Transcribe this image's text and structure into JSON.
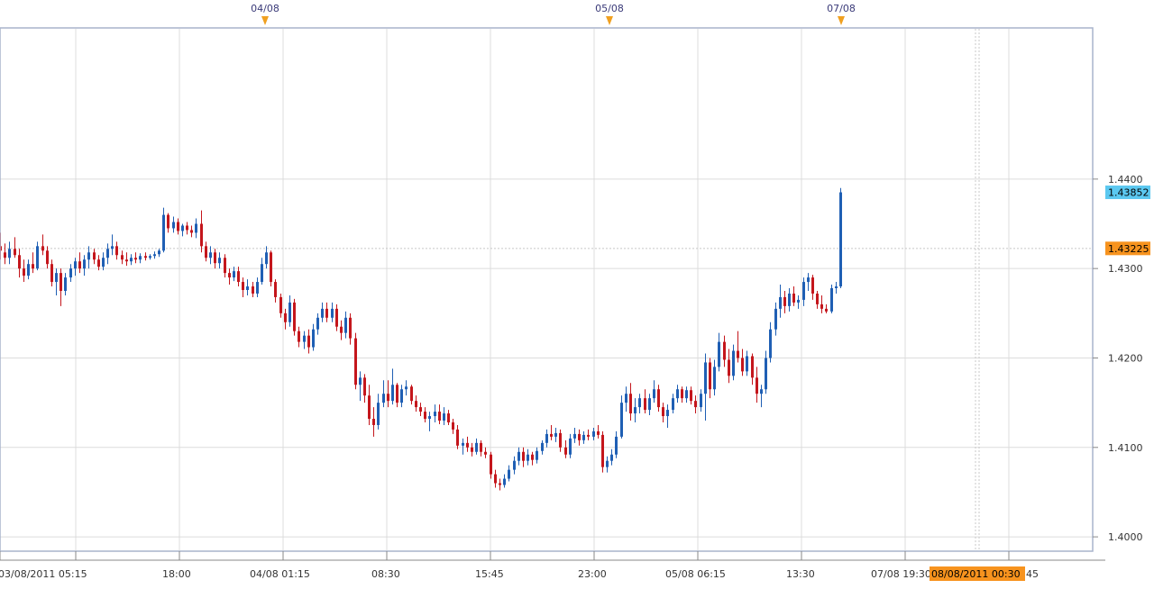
{
  "chart_data": {
    "type": "candlestick",
    "title": "",
    "xlabel": "",
    "ylabel": "",
    "ylim": [
      1.3985,
      1.4568
    ],
    "grid": true,
    "colors": {
      "up": "#1f5fb4",
      "down": "#c4161c",
      "grid": "#dcdcdc",
      "frame": "#a9b4cc",
      "axis_text": "#333333",
      "date_marker": "#f0a020",
      "date_text": "#3a3a78",
      "last_price_bg": "#5bc8f0",
      "ref_price_bg": "#f7931e"
    },
    "y_ticks": [
      "1.4000",
      "1.4100",
      "1.4200",
      "1.4300",
      "1.4400"
    ],
    "y_tick_values": [
      1.4,
      1.41,
      1.42,
      1.43,
      1.44
    ],
    "x_ticks": [
      "03/08/2011 05:15",
      "18:00",
      "04/08 01:15",
      "08:30",
      "15:45",
      "23:00",
      "05/08 06:15",
      "13:30",
      "07/08 19:30",
      "45"
    ],
    "date_markers": [
      "04/08",
      "05/08",
      "07/08"
    ],
    "last_price": {
      "label": "1.43852",
      "value": 1.43852
    },
    "ref_price": {
      "label": "1.43225",
      "value": 1.43225
    },
    "cursor_label": "08/08/2011 00:30",
    "candles": {
      "fields": [
        "open",
        "high",
        "low",
        "close"
      ],
      "values": [
        [
          1.4325,
          1.434,
          1.431,
          1.432
        ],
        [
          1.4318,
          1.4328,
          1.4305,
          1.4312
        ],
        [
          1.4312,
          1.433,
          1.4305,
          1.4322
        ],
        [
          1.4322,
          1.4335,
          1.4312,
          1.4315
        ],
        [
          1.4315,
          1.4322,
          1.429,
          1.43
        ],
        [
          1.43,
          1.431,
          1.4285,
          1.4292
        ],
        [
          1.4292,
          1.431,
          1.4288,
          1.4305
        ],
        [
          1.4305,
          1.4318,
          1.4295,
          1.43
        ],
        [
          1.43,
          1.433,
          1.4298,
          1.4325
        ],
        [
          1.4325,
          1.4338,
          1.4315,
          1.432
        ],
        [
          1.432,
          1.4325,
          1.43,
          1.4305
        ],
        [
          1.4305,
          1.431,
          1.428,
          1.4285
        ],
        [
          1.4285,
          1.43,
          1.427,
          1.4295
        ],
        [
          1.4295,
          1.43,
          1.4258,
          1.4275
        ],
        [
          1.4275,
          1.4295,
          1.427,
          1.429
        ],
        [
          1.429,
          1.4305,
          1.4285,
          1.43
        ],
        [
          1.43,
          1.4312,
          1.4292,
          1.4308
        ],
        [
          1.4308,
          1.4318,
          1.4295,
          1.43
        ],
        [
          1.43,
          1.4315,
          1.4292,
          1.431
        ],
        [
          1.431,
          1.4325,
          1.43,
          1.4318
        ],
        [
          1.4318,
          1.4322,
          1.4305,
          1.431
        ],
        [
          1.431,
          1.4315,
          1.4298,
          1.4302
        ],
        [
          1.4302,
          1.4318,
          1.4298,
          1.4312
        ],
        [
          1.4312,
          1.4328,
          1.4305,
          1.4322
        ],
        [
          1.4322,
          1.4338,
          1.4315,
          1.4325
        ],
        [
          1.4325,
          1.433,
          1.431,
          1.4315
        ],
        [
          1.4315,
          1.432,
          1.4305,
          1.431
        ],
        [
          1.431,
          1.4318,
          1.4303,
          1.4308
        ],
        [
          1.4308,
          1.4316,
          1.4304,
          1.4312
        ],
        [
          1.4312,
          1.4318,
          1.4306,
          1.431
        ],
        [
          1.431,
          1.4317,
          1.4306,
          1.4314
        ],
        [
          1.4314,
          1.4318,
          1.4309,
          1.4312
        ],
        [
          1.4312,
          1.4316,
          1.431,
          1.4314
        ],
        [
          1.4314,
          1.4319,
          1.4311,
          1.4316
        ],
        [
          1.4316,
          1.4322,
          1.4313,
          1.432
        ],
        [
          1.432,
          1.4368,
          1.4318,
          1.436
        ],
        [
          1.436,
          1.4362,
          1.434,
          1.4345
        ],
        [
          1.4345,
          1.4358,
          1.434,
          1.4352
        ],
        [
          1.4352,
          1.4356,
          1.4338,
          1.4342
        ],
        [
          1.4342,
          1.435,
          1.4336,
          1.4348
        ],
        [
          1.4348,
          1.4352,
          1.4338,
          1.4343
        ],
        [
          1.4343,
          1.4348,
          1.4335,
          1.434
        ],
        [
          1.434,
          1.4356,
          1.4334,
          1.435
        ],
        [
          1.435,
          1.4365,
          1.4318,
          1.4325
        ],
        [
          1.4325,
          1.433,
          1.4308,
          1.4312
        ],
        [
          1.4312,
          1.4325,
          1.4305,
          1.4318
        ],
        [
          1.4318,
          1.4322,
          1.43,
          1.4306
        ],
        [
          1.4306,
          1.4318,
          1.43,
          1.4312
        ],
        [
          1.4312,
          1.4316,
          1.429,
          1.4295
        ],
        [
          1.4295,
          1.43,
          1.4282,
          1.429
        ],
        [
          1.429,
          1.4302,
          1.4286,
          1.4297
        ],
        [
          1.4297,
          1.4302,
          1.428,
          1.4285
        ],
        [
          1.4285,
          1.429,
          1.4268,
          1.4276
        ],
        [
          1.4276,
          1.4288,
          1.427,
          1.428
        ],
        [
          1.428,
          1.4285,
          1.4268,
          1.4272
        ],
        [
          1.4272,
          1.429,
          1.4268,
          1.4285
        ],
        [
          1.4285,
          1.4312,
          1.4282,
          1.4305
        ],
        [
          1.4305,
          1.4325,
          1.43,
          1.4318
        ],
        [
          1.4318,
          1.432,
          1.428,
          1.4285
        ],
        [
          1.4285,
          1.4288,
          1.4262,
          1.4268
        ],
        [
          1.4268,
          1.4272,
          1.4245,
          1.425
        ],
        [
          1.425,
          1.4255,
          1.4232,
          1.424
        ],
        [
          1.424,
          1.427,
          1.4235,
          1.4262
        ],
        [
          1.4262,
          1.4266,
          1.4225,
          1.423
        ],
        [
          1.423,
          1.4235,
          1.4212,
          1.4218
        ],
        [
          1.4218,
          1.423,
          1.421,
          1.4225
        ],
        [
          1.4225,
          1.4232,
          1.4205,
          1.4212
        ],
        [
          1.4212,
          1.4238,
          1.4208,
          1.4232
        ],
        [
          1.4232,
          1.425,
          1.4226,
          1.4245
        ],
        [
          1.4245,
          1.4262,
          1.424,
          1.4255
        ],
        [
          1.4255,
          1.4262,
          1.424,
          1.4245
        ],
        [
          1.4245,
          1.4262,
          1.424,
          1.4255
        ],
        [
          1.4255,
          1.426,
          1.423,
          1.4235
        ],
        [
          1.4235,
          1.4242,
          1.422,
          1.4228
        ],
        [
          1.4228,
          1.4252,
          1.4222,
          1.4245
        ],
        [
          1.4245,
          1.425,
          1.4215,
          1.4222
        ],
        [
          1.4222,
          1.4228,
          1.4165,
          1.417
        ],
        [
          1.417,
          1.4185,
          1.4152,
          1.4178
        ],
        [
          1.4178,
          1.4182,
          1.415,
          1.4158
        ],
        [
          1.4158,
          1.417,
          1.4125,
          1.4132
        ],
        [
          1.4132,
          1.4145,
          1.4112,
          1.4125
        ],
        [
          1.4125,
          1.416,
          1.412,
          1.415
        ],
        [
          1.415,
          1.4175,
          1.4145,
          1.416
        ],
        [
          1.416,
          1.4175,
          1.4145,
          1.4152
        ],
        [
          1.4152,
          1.4188,
          1.4148,
          1.417
        ],
        [
          1.417,
          1.4172,
          1.4145,
          1.415
        ],
        [
          1.415,
          1.417,
          1.4145,
          1.4165
        ],
        [
          1.4165,
          1.4175,
          1.4158,
          1.4168
        ],
        [
          1.4168,
          1.417,
          1.4148,
          1.4152
        ],
        [
          1.4152,
          1.4158,
          1.414,
          1.4145
        ],
        [
          1.4145,
          1.415,
          1.4135,
          1.414
        ],
        [
          1.414,
          1.4145,
          1.4128,
          1.4132
        ],
        [
          1.4132,
          1.414,
          1.4118,
          1.4135
        ],
        [
          1.4135,
          1.4148,
          1.4128,
          1.414
        ],
        [
          1.414,
          1.4148,
          1.4126,
          1.413
        ],
        [
          1.413,
          1.4145,
          1.4125,
          1.4138
        ],
        [
          1.4138,
          1.4142,
          1.4125,
          1.4128
        ],
        [
          1.4128,
          1.4132,
          1.4115,
          1.412
        ],
        [
          1.412,
          1.4125,
          1.4098,
          1.4102
        ],
        [
          1.4102,
          1.411,
          1.4092,
          1.4105
        ],
        [
          1.4105,
          1.4112,
          1.4095,
          1.41
        ],
        [
          1.41,
          1.4105,
          1.409,
          1.4095
        ],
        [
          1.4095,
          1.411,
          1.4092,
          1.4105
        ],
        [
          1.4105,
          1.4108,
          1.409,
          1.4095
        ],
        [
          1.4095,
          1.41,
          1.4088,
          1.4092
        ],
        [
          1.4092,
          1.4095,
          1.4065,
          1.407
        ],
        [
          1.407,
          1.4075,
          1.4055,
          1.406
        ],
        [
          1.406,
          1.4065,
          1.4052,
          1.4058
        ],
        [
          1.4058,
          1.407,
          1.4055,
          1.4065
        ],
        [
          1.4065,
          1.408,
          1.4062,
          1.4075
        ],
        [
          1.4075,
          1.409,
          1.407,
          1.4085
        ],
        [
          1.4085,
          1.41,
          1.408,
          1.4095
        ],
        [
          1.4095,
          1.41,
          1.4078,
          1.4085
        ],
        [
          1.4085,
          1.4098,
          1.408,
          1.4092
        ],
        [
          1.4092,
          1.4095,
          1.408,
          1.4086
        ],
        [
          1.4086,
          1.41,
          1.4082,
          1.4096
        ],
        [
          1.4096,
          1.4108,
          1.4092,
          1.4105
        ],
        [
          1.4105,
          1.412,
          1.41,
          1.4115
        ],
        [
          1.4115,
          1.4125,
          1.4108,
          1.4112
        ],
        [
          1.4112,
          1.4122,
          1.4106,
          1.4116
        ],
        [
          1.4116,
          1.412,
          1.4095,
          1.41
        ],
        [
          1.41,
          1.4108,
          1.4088,
          1.4092
        ],
        [
          1.4092,
          1.4115,
          1.4088,
          1.411
        ],
        [
          1.411,
          1.4122,
          1.4105,
          1.4115
        ],
        [
          1.4115,
          1.412,
          1.4102,
          1.4108
        ],
        [
          1.4108,
          1.4118,
          1.4104,
          1.4114
        ],
        [
          1.4114,
          1.412,
          1.4108,
          1.4112
        ],
        [
          1.4112,
          1.4122,
          1.4108,
          1.4118
        ],
        [
          1.4118,
          1.4125,
          1.411,
          1.4114
        ],
        [
          1.4114,
          1.4118,
          1.4072,
          1.4078
        ],
        [
          1.4078,
          1.409,
          1.4072,
          1.4085
        ],
        [
          1.4085,
          1.4098,
          1.408,
          1.4092
        ],
        [
          1.4092,
          1.4118,
          1.4088,
          1.4112
        ],
        [
          1.4112,
          1.4158,
          1.411,
          1.415
        ],
        [
          1.415,
          1.4168,
          1.414,
          1.416
        ],
        [
          1.416,
          1.4172,
          1.413,
          1.4138
        ],
        [
          1.4138,
          1.4155,
          1.4128,
          1.4145
        ],
        [
          1.4145,
          1.416,
          1.4138,
          1.4155
        ],
        [
          1.4155,
          1.4165,
          1.4138,
          1.4142
        ],
        [
          1.4142,
          1.416,
          1.4136,
          1.4155
        ],
        [
          1.4155,
          1.4175,
          1.415,
          1.4165
        ],
        [
          1.4165,
          1.417,
          1.414,
          1.4145
        ],
        [
          1.4145,
          1.415,
          1.4128,
          1.4135
        ],
        [
          1.4135,
          1.4148,
          1.4122,
          1.4142
        ],
        [
          1.4142,
          1.416,
          1.4138,
          1.4155
        ],
        [
          1.4155,
          1.417,
          1.415,
          1.4165
        ],
        [
          1.4165,
          1.4168,
          1.415,
          1.4155
        ],
        [
          1.4155,
          1.4168,
          1.415,
          1.4164
        ],
        [
          1.4164,
          1.4168,
          1.4148,
          1.4152
        ],
        [
          1.4152,
          1.4158,
          1.4138,
          1.4145
        ],
        [
          1.4145,
          1.4165,
          1.414,
          1.416
        ],
        [
          1.416,
          1.4205,
          1.413,
          1.4195
        ],
        [
          1.4195,
          1.42,
          1.4155,
          1.4165
        ],
        [
          1.4165,
          1.4198,
          1.4158,
          1.419
        ],
        [
          1.419,
          1.4228,
          1.4185,
          1.4218
        ],
        [
          1.4218,
          1.4225,
          1.419,
          1.4198
        ],
        [
          1.4198,
          1.421,
          1.4172,
          1.418
        ],
        [
          1.418,
          1.4215,
          1.4175,
          1.4208
        ],
        [
          1.4208,
          1.423,
          1.4195,
          1.42
        ],
        [
          1.42,
          1.421,
          1.418,
          1.4185
        ],
        [
          1.4185,
          1.4208,
          1.418,
          1.4202
        ],
        [
          1.4202,
          1.4205,
          1.417,
          1.4178
        ],
        [
          1.4178,
          1.419,
          1.415,
          1.416
        ],
        [
          1.416,
          1.417,
          1.4145,
          1.4165
        ],
        [
          1.4165,
          1.4208,
          1.416,
          1.42
        ],
        [
          1.42,
          1.424,
          1.4195,
          1.4232
        ],
        [
          1.4232,
          1.4262,
          1.4225,
          1.4255
        ],
        [
          1.4255,
          1.4282,
          1.4245,
          1.4268
        ],
        [
          1.4268,
          1.4275,
          1.425,
          1.4258
        ],
        [
          1.4258,
          1.4278,
          1.4252,
          1.4272
        ],
        [
          1.4272,
          1.428,
          1.4258,
          1.4262
        ],
        [
          1.4262,
          1.427,
          1.4255,
          1.4265
        ],
        [
          1.4265,
          1.429,
          1.4258,
          1.4285
        ],
        [
          1.4285,
          1.4295,
          1.4275,
          1.429
        ],
        [
          1.429,
          1.4293,
          1.4265,
          1.4272
        ],
        [
          1.4272,
          1.4275,
          1.4255,
          1.426
        ],
        [
          1.426,
          1.427,
          1.425,
          1.4255
        ],
        [
          1.4255,
          1.426,
          1.425,
          1.4252
        ],
        [
          1.4252,
          1.4282,
          1.425,
          1.4278
        ],
        [
          1.4278,
          1.4285,
          1.4272,
          1.428
        ],
        [
          1.428,
          1.439,
          1.4278,
          1.43852
        ]
      ]
    }
  }
}
